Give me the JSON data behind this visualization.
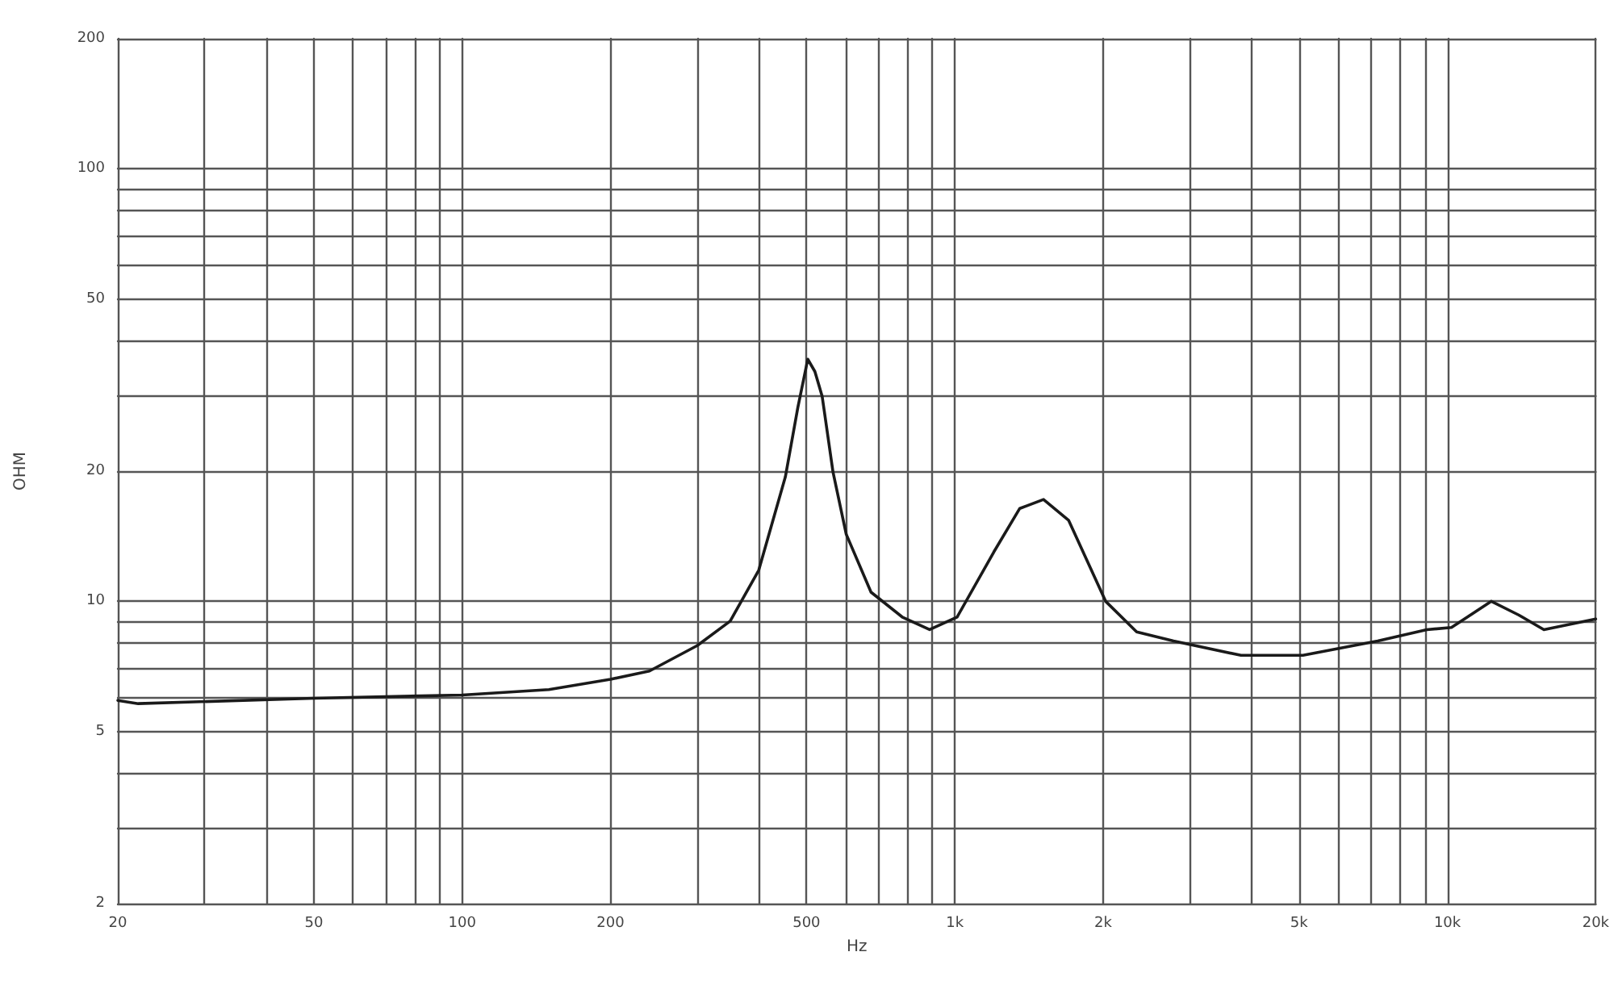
{
  "chart_data": {
    "type": "line",
    "xlabel": "Hz",
    "ylabel": "OHM",
    "log": "xy",
    "grid": true,
    "marker": "none",
    "line_style": "solid",
    "xlim": [
      20,
      20000
    ],
    "ylim": [
      2,
      200
    ],
    "xticks": [
      20,
      {
        "value": 30,
        "label": null
      },
      {
        "value": 40,
        "label": null
      },
      50,
      {
        "value": 60,
        "label": null
      },
      {
        "value": 70,
        "label": null
      },
      {
        "value": 80,
        "label": null
      },
      {
        "value": 90,
        "label": null
      },
      100,
      200,
      {
        "value": 300,
        "label": null
      },
      {
        "value": 400,
        "label": null
      },
      500,
      {
        "value": 600,
        "label": null
      },
      {
        "value": 700,
        "label": null
      },
      {
        "value": 800,
        "label": null
      },
      {
        "value": 900,
        "label": null
      },
      {
        "value": 1000,
        "label": "1k"
      },
      {
        "value": 2000,
        "label": "2k"
      },
      {
        "value": 3000,
        "label": null
      },
      {
        "value": 4000,
        "label": null
      },
      {
        "value": 5000,
        "label": "5k"
      },
      {
        "value": 6000,
        "label": null
      },
      {
        "value": 7000,
        "label": null
      },
      {
        "value": 8000,
        "label": null
      },
      {
        "value": 9000,
        "label": null
      },
      {
        "value": 10000,
        "label": "10k"
      },
      {
        "value": 20000,
        "label": "20k"
      }
    ],
    "yticks": [
      2,
      {
        "value": 3,
        "label": null
      },
      {
        "value": 4,
        "label": null
      },
      5,
      {
        "value": 6,
        "label": null
      },
      {
        "value": 7,
        "label": null
      },
      {
        "value": 8,
        "label": null
      },
      {
        "value": 9,
        "label": null
      },
      10,
      20,
      {
        "value": 30,
        "label": null
      },
      {
        "value": 40,
        "label": null
      },
      50,
      {
        "value": 60,
        "label": null
      },
      {
        "value": 70,
        "label": null
      },
      {
        "value": 80,
        "label": null
      },
      {
        "value": 90,
        "label": null
      },
      100,
      200
    ],
    "series": [
      {
        "color": "#1a1a1a",
        "x": [
          20,
          22,
          50,
          100,
          150,
          200,
          240,
          300,
          350,
          400,
          453,
          480,
          503,
          520,
          538,
          566,
          602,
          676,
          782,
          889,
          1011,
          1200,
          1355,
          1514,
          1702,
          2024,
          2340,
          2780,
          3810,
          5090,
          7220,
          9080,
          10190,
          12280,
          13950,
          15700,
          20000
        ],
        "values": [
          5.9,
          5.8,
          5.97,
          6.07,
          6.25,
          6.6,
          6.9,
          7.9,
          9,
          11.8,
          19.4,
          28,
          36.3,
          34,
          29.8,
          19.9,
          14.3,
          10.5,
          9.2,
          8.6,
          9.2,
          13,
          16.4,
          17.2,
          15.4,
          10,
          8.5,
          8.1,
          7.5,
          7.5,
          8.1,
          8.6,
          8.7,
          10,
          9.3,
          8.6,
          9.1
        ]
      }
    ]
  }
}
